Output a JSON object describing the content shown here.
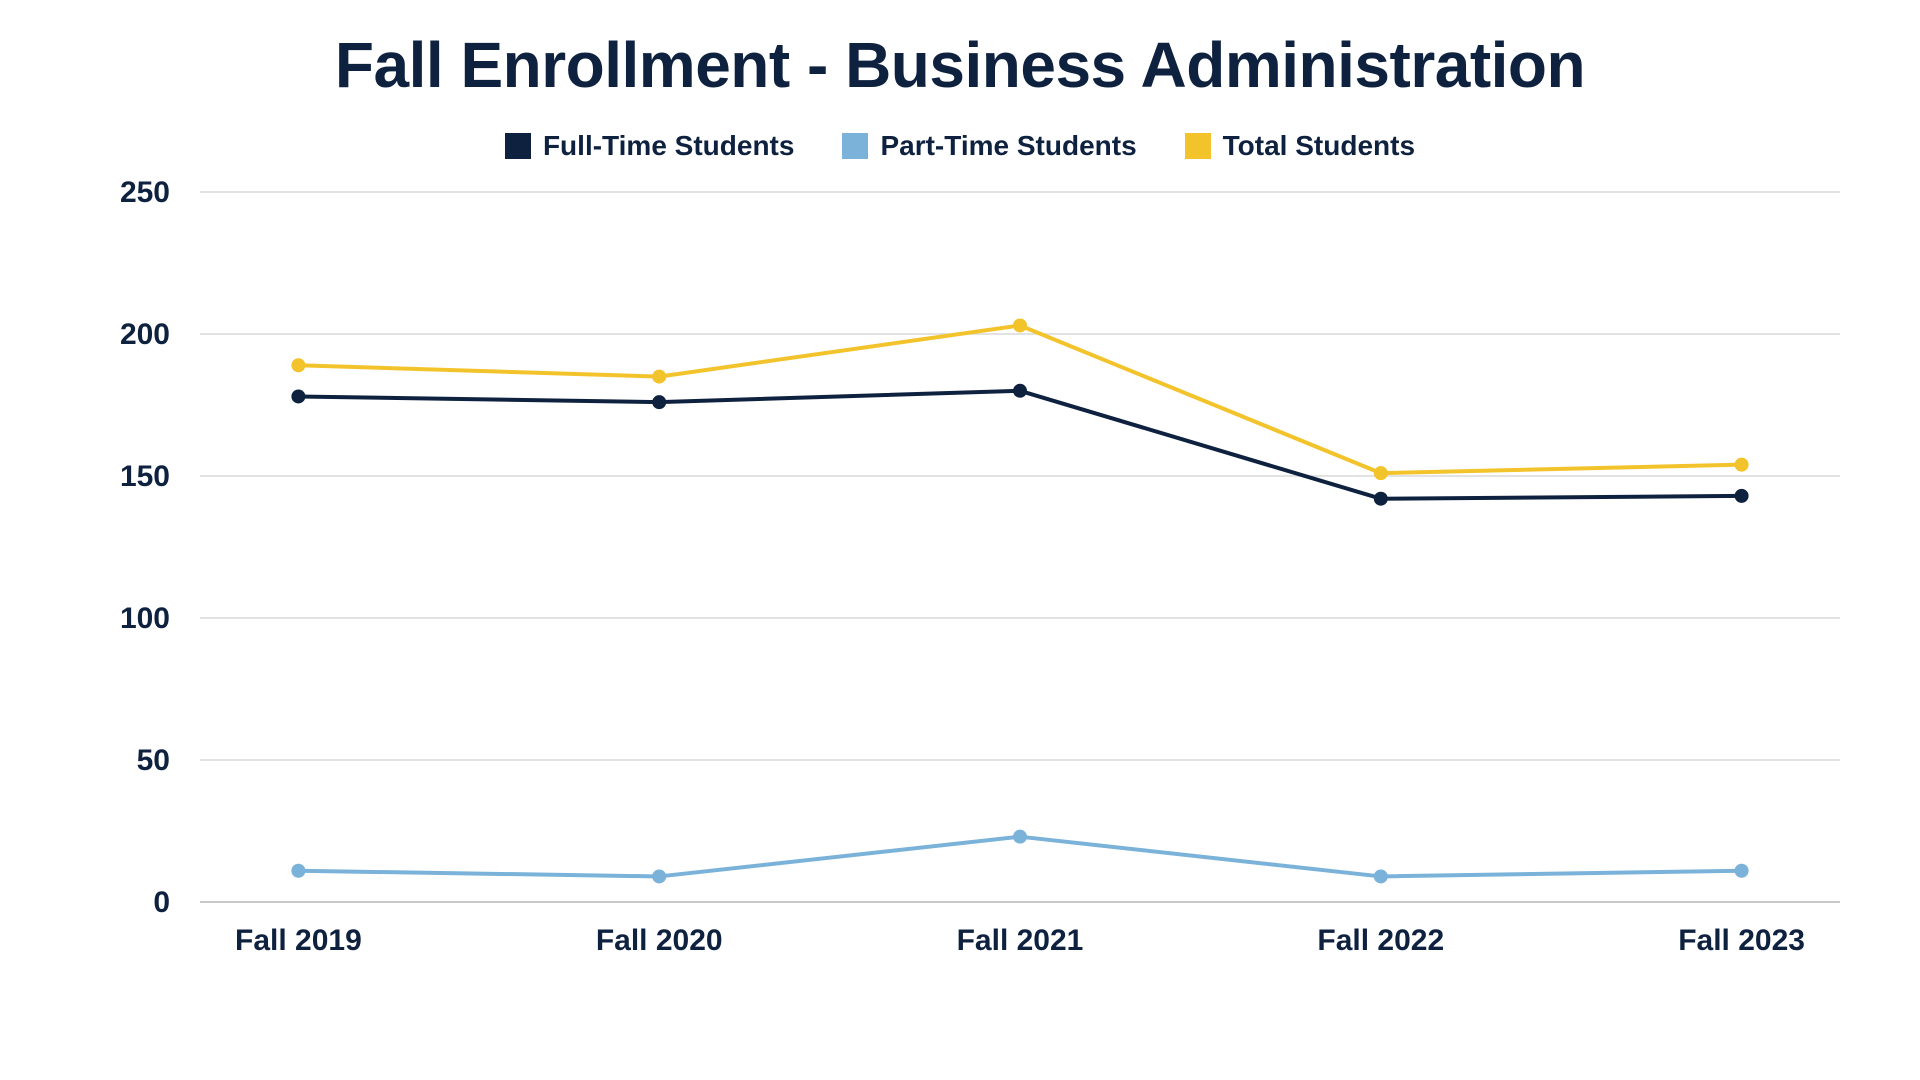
{
  "title": "Fall Enrollment - Business Administration",
  "chart": {
    "type": "line",
    "background_color": "#ffffff",
    "grid_color": "#d9d9d9",
    "axis_color": "#c9c9c9",
    "text_color": "#0e2240",
    "title_fontsize": 64,
    "title_fontweight": 800,
    "label_fontsize": 30,
    "label_fontweight": 600,
    "legend_fontsize": 28,
    "legend_fontweight": 700,
    "categories": [
      "Fall 2019",
      "Fall 2020",
      "Fall 2021",
      "Fall 2022",
      "Fall 2023"
    ],
    "ylim": [
      0,
      250
    ],
    "yticks": [
      0,
      50,
      100,
      150,
      200,
      250
    ],
    "line_width": 4,
    "marker_radius": 7,
    "series": [
      {
        "name": "Full-Time Students",
        "color": "#0e2240",
        "values": [
          178,
          176,
          180,
          142,
          143
        ]
      },
      {
        "name": "Part-Time Students",
        "color": "#7ab2d9",
        "values": [
          11,
          9,
          23,
          9,
          11
        ]
      },
      {
        "name": "Total Students",
        "color": "#f3c32c",
        "values": [
          189,
          185,
          203,
          151,
          154
        ]
      }
    ]
  }
}
